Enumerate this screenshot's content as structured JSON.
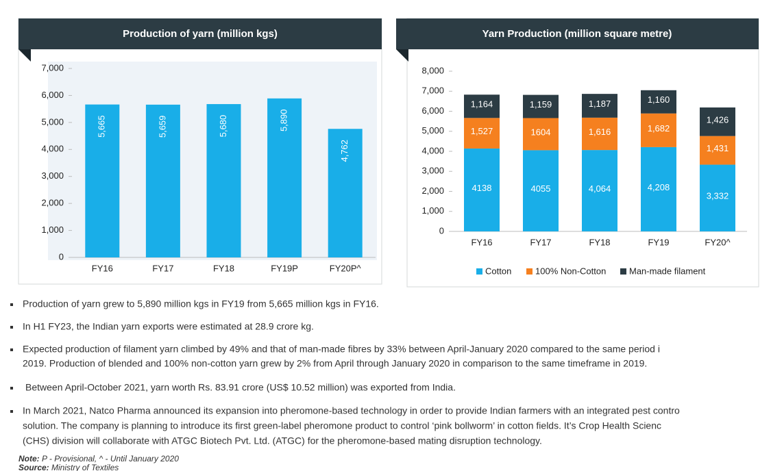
{
  "chart_data": [
    {
      "type": "bar",
      "title": "Production of yarn (million kgs)",
      "categories": [
        "FY16",
        "FY17",
        "FY18",
        "FY19P",
        "FY20P^"
      ],
      "values": [
        5665,
        5659,
        5680,
        5890,
        4762
      ],
      "value_labels": [
        "5,665",
        "5,659",
        "5,680",
        "5,890",
        "4,762"
      ],
      "color": "#19aee8",
      "ylim": [
        0,
        7000
      ],
      "yticks": [
        0,
        {
          "value": 1000,
          "label": "1,000"
        },
        {
          "value": 2000,
          "label": "2,000"
        },
        {
          "value": 3000,
          "label": "3,000"
        },
        {
          "value": 4000,
          "label": "4,000"
        },
        {
          "value": 5000,
          "label": "5,000"
        },
        {
          "value": 6000,
          "label": "6,000"
        },
        {
          "value": 7000,
          "label": "7,000"
        }
      ]
    },
    {
      "type": "bar",
      "stacked": true,
      "title": "Yarn Production (million square metre)",
      "categories": [
        "FY16",
        "FY17",
        "FY18",
        "FY19",
        "FY20^"
      ],
      "series": [
        {
          "name": "Cotton",
          "color": "#19aee8",
          "values": [
            4138,
            4055,
            4064,
            4208,
            3332
          ],
          "value_labels": [
            "4138",
            "4055",
            "4,064",
            "4,208",
            "3,332"
          ]
        },
        {
          "name": "100% Non-Cotton",
          "color": "#f5801f",
          "values": [
            1527,
            1604,
            1616,
            1682,
            1431
          ],
          "value_labels": [
            "1,527",
            "1604",
            "1,616",
            "1,682",
            "1,431"
          ]
        },
        {
          "name": "Man-made filament",
          "color": "#2c3c44",
          "values": [
            1164,
            1159,
            1187,
            1160,
            1426
          ],
          "value_labels": [
            "1,164",
            "1,159",
            "1,187",
            "1,160",
            "1,426"
          ]
        }
      ],
      "ylim": [
        0,
        8000
      ],
      "yticks": [
        0,
        {
          "value": 1000,
          "label": "1,000"
        },
        {
          "value": 2000,
          "label": "2,000"
        },
        {
          "value": 3000,
          "label": "3,000"
        },
        {
          "value": 4000,
          "label": "4,000"
        },
        {
          "value": 5000,
          "label": "5,000"
        },
        {
          "value": 6000,
          "label": "6,000"
        },
        {
          "value": 7000,
          "label": "7,000"
        },
        {
          "value": 8000,
          "label": "8,000"
        }
      ]
    }
  ],
  "bullets": [
    [
      "Production of yarn grew to 5,890 million kgs in FY19 from 5,665 million kgs in FY16."
    ],
    [
      "In H1 FY23, the Indian yarn exports were estimated at 28.9 crore kg."
    ],
    [
      "Expected production of filament yarn climbed by 49% and that of man-made fibres by 33% between April-January 2020 compared to the same period i",
      "2019. Production of blended and 100% non-cotton yarn grew by 2% from April through January 2020 in comparison to the same timeframe in 2019."
    ],
    [
      "Between April-October 2021, yarn worth Rs. 83.91 crore (US$ 10.52 million) was exported from India."
    ],
    [
      "In March 2021, Natco Pharma announced its expansion into pheromone-based technology in order to provide Indian farmers with an integrated pest contro",
      "solution. The company is planning to introduce its first green-label pheromone product to control ‘pink bollworm’ in cotton fields. It’s Crop Health Scienc",
      "(CHS) division will collaborate with ATGC Biotech Pvt. Ltd. (ATGC) for the pheromone-based mating disruption technology."
    ]
  ],
  "note": {
    "label": "Note:",
    "text": " P - Provisional, ^ - Until January 2020"
  },
  "source": {
    "label": "Source:",
    "text": " Ministry of Textiles"
  }
}
